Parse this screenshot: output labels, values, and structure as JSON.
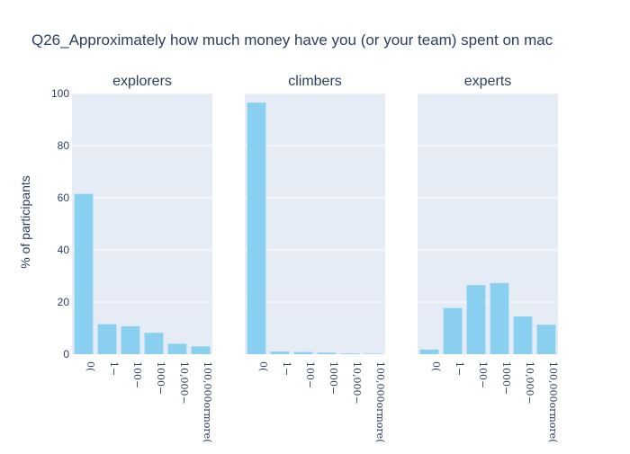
{
  "chart_data": {
    "type": "bar",
    "title": "Q26_Approximately how much money have you (or your team) spent on mac",
    "ylabel": "% of participants",
    "ylim": [
      0,
      100
    ],
    "yticks": [
      0,
      20,
      40,
      60,
      80,
      100
    ],
    "categories": [
      "0(",
      "1−",
      "100−",
      "1000−",
      "10,000−",
      "100,000ormore("
    ],
    "bar_color": "#89d0f0",
    "plot_bg": "#e5ecf6",
    "grid": true,
    "panels": [
      {
        "name": "explorers",
        "values": [
          61.5,
          11.5,
          10.7,
          8.2,
          4.0,
          3.0
        ]
      },
      {
        "name": "climbers",
        "values": [
          96.5,
          1.0,
          0.8,
          0.6,
          0.3,
          0.2
        ]
      },
      {
        "name": "experts",
        "values": [
          1.8,
          17.7,
          26.5,
          27.3,
          14.5,
          11.3
        ]
      }
    ]
  }
}
